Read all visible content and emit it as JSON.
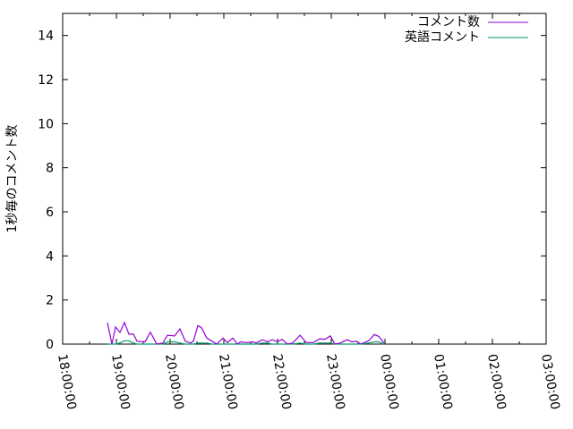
{
  "chart_data": {
    "type": "line",
    "title": "",
    "xlabel": "",
    "ylabel": "1秒毎のコメント数",
    "xlim": [
      "18:00:00",
      "03:00:00"
    ],
    "ylim": [
      0,
      15
    ],
    "x_ticks": [
      "18:00:00",
      "19:00:00",
      "20:00:00",
      "21:00:00",
      "22:00:00",
      "23:00:00",
      "00:00:00",
      "01:00:00",
      "02:00:00",
      "03:00:00"
    ],
    "y_ticks": [
      0,
      2,
      4,
      6,
      8,
      10,
      12,
      14
    ],
    "grid": false,
    "legend_position": "top-right",
    "x": [
      "18:50",
      "18:55",
      "18:59",
      "19:04",
      "19:09",
      "19:14",
      "19:19",
      "19:23",
      "19:32",
      "19:38",
      "19:45",
      "19:52",
      "19:57",
      "20:05",
      "20:11",
      "20:17",
      "20:23",
      "20:26",
      "20:31",
      "20:35",
      "20:41",
      "20:47",
      "20:52",
      "20:59",
      "21:04",
      "21:10",
      "21:15",
      "21:19",
      "21:25",
      "21:33",
      "21:36",
      "21:43",
      "21:49",
      "21:54",
      "22:00",
      "22:05",
      "22:11",
      "22:17",
      "22:25",
      "22:32",
      "22:40",
      "22:47",
      "22:53",
      "22:59",
      "23:04",
      "23:10",
      "23:18",
      "23:23",
      "23:28",
      "23:33",
      "23:42",
      "23:48",
      "23:53",
      "23:59"
    ],
    "series": [
      {
        "name": "コメント数",
        "color": "#9400d3",
        "values": [
          0.97,
          0,
          0.78,
          0.53,
          0.98,
          0.45,
          0.45,
          0.13,
          0.1,
          0.54,
          0,
          0.05,
          0.4,
          0.37,
          0.69,
          0.13,
          0.05,
          0.13,
          0.84,
          0.74,
          0.27,
          0.13,
          0,
          0.27,
          0.07,
          0.27,
          0,
          0.1,
          0.07,
          0.1,
          0.05,
          0.2,
          0.1,
          0.2,
          0.1,
          0.22,
          0,
          0.05,
          0.4,
          0.07,
          0.07,
          0.24,
          0.22,
          0.37,
          0,
          0.05,
          0.2,
          0.1,
          0.13,
          0,
          0.16,
          0.43,
          0.35,
          0.05
        ]
      },
      {
        "name": "英語コメント",
        "color": "#009e73",
        "values": [
          0,
          0,
          0,
          0.05,
          0.15,
          0.15,
          0.05,
          0,
          0,
          0,
          0,
          0,
          0.1,
          0.1,
          0.05,
          0,
          0,
          0,
          0.05,
          0.05,
          0.05,
          0,
          0,
          0,
          0,
          0,
          0,
          0,
          0,
          0,
          0,
          0.05,
          0.05,
          0,
          0,
          0,
          0,
          0,
          0.05,
          0,
          0,
          0.05,
          0.05,
          0.05,
          0,
          0,
          0,
          0,
          0,
          0,
          0.05,
          0.1,
          0.1,
          0
        ]
      }
    ]
  }
}
